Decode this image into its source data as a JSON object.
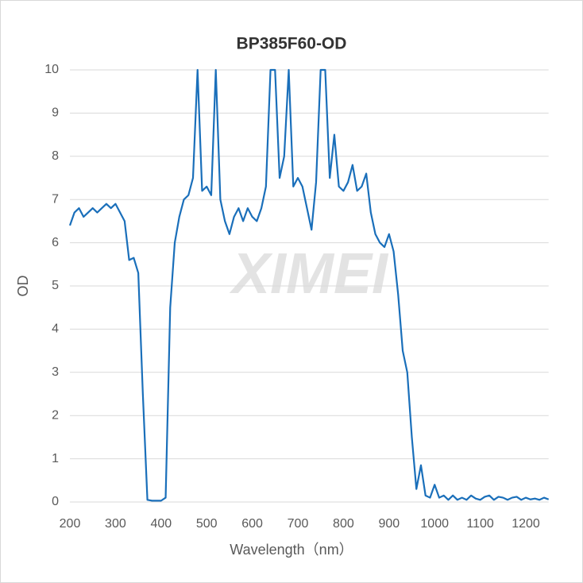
{
  "chart_data": {
    "type": "line",
    "title": "BP385F60-OD",
    "watermark": "XIMEI",
    "x_label": "Wavelength（nm）",
    "y_label": "OD",
    "xlim": [
      200,
      1250
    ],
    "xticks": [
      200,
      300,
      400,
      500,
      600,
      700,
      800,
      900,
      1000,
      1100,
      1200
    ],
    "ylim": [
      0,
      10
    ],
    "yticks": [
      0,
      1,
      2,
      3,
      4,
      5,
      6,
      7,
      8,
      9,
      10
    ],
    "grid": true,
    "series": [
      {
        "name": "BP385F60-OD",
        "color": "#1a6fba",
        "x": [
          200,
          210,
          220,
          230,
          240,
          250,
          260,
          270,
          280,
          290,
          300,
          310,
          320,
          330,
          340,
          350,
          360,
          370,
          380,
          390,
          400,
          410,
          420,
          430,
          440,
          450,
          460,
          470,
          480,
          490,
          500,
          510,
          520,
          530,
          540,
          550,
          560,
          570,
          580,
          590,
          600,
          610,
          620,
          630,
          640,
          650,
          660,
          670,
          680,
          690,
          700,
          710,
          720,
          730,
          740,
          750,
          760,
          770,
          780,
          790,
          800,
          810,
          820,
          830,
          840,
          850,
          860,
          870,
          880,
          890,
          900,
          910,
          920,
          930,
          940,
          950,
          960,
          970,
          980,
          990,
          1000,
          1010,
          1020,
          1030,
          1040,
          1050,
          1060,
          1070,
          1080,
          1090,
          1100,
          1110,
          1120,
          1130,
          1140,
          1150,
          1160,
          1170,
          1180,
          1190,
          1200,
          1210,
          1220,
          1230,
          1240,
          1250
        ],
        "values": [
          6.4,
          6.7,
          6.8,
          6.6,
          6.7,
          6.8,
          6.7,
          6.8,
          6.9,
          6.8,
          6.9,
          6.7,
          6.5,
          5.6,
          5.65,
          5.3,
          2.5,
          0.05,
          0.03,
          0.03,
          0.03,
          0.1,
          4.5,
          6.0,
          6.6,
          7.0,
          7.1,
          7.5,
          10,
          7.2,
          7.3,
          7.1,
          10,
          7.0,
          6.5,
          6.2,
          6.6,
          6.8,
          6.5,
          6.8,
          6.6,
          6.5,
          6.8,
          7.3,
          10,
          10,
          7.5,
          8.0,
          10,
          7.3,
          7.5,
          7.3,
          6.8,
          6.3,
          7.4,
          10,
          10,
          7.5,
          8.5,
          7.3,
          7.2,
          7.4,
          7.8,
          7.2,
          7.3,
          7.6,
          6.7,
          6.2,
          6.0,
          5.9,
          6.2,
          5.8,
          4.8,
          3.5,
          3.0,
          1.5,
          0.3,
          0.85,
          0.15,
          0.1,
          0.4,
          0.1,
          0.15,
          0.05,
          0.15,
          0.05,
          0.1,
          0.05,
          0.15,
          0.08,
          0.05,
          0.12,
          0.15,
          0.05,
          0.12,
          0.1,
          0.05,
          0.1,
          0.12,
          0.05,
          0.1,
          0.06,
          0.08,
          0.05,
          0.1,
          0.06
        ]
      }
    ]
  }
}
